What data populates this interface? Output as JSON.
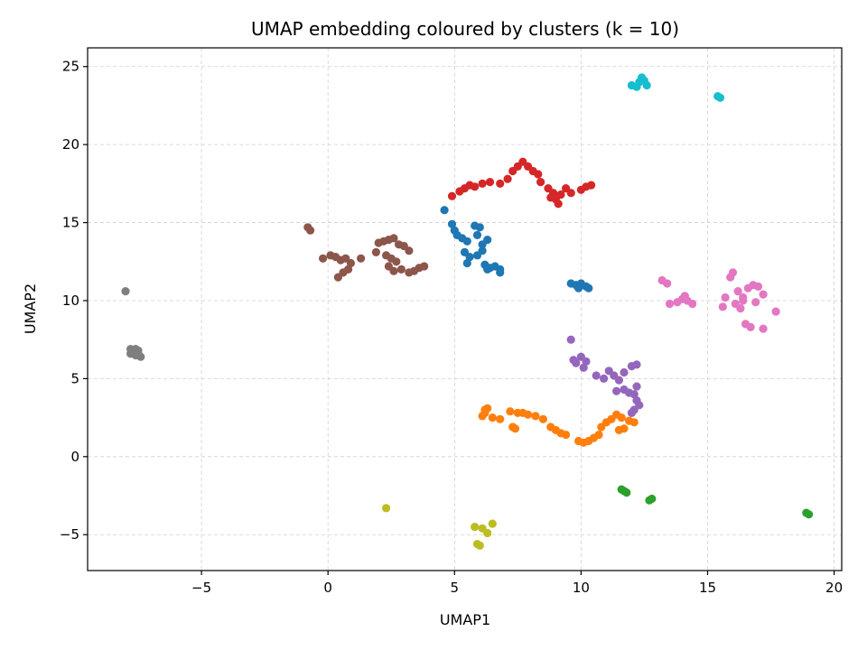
{
  "chart_data": {
    "type": "scatter",
    "title": "UMAP embedding coloured by clusters (k = 10)",
    "xlabel": "UMAP1",
    "ylabel": "UMAP2",
    "xlim": [
      -9.5,
      20.3
    ],
    "ylim": [
      -7.3,
      26.2
    ],
    "xticks": [
      -5,
      0,
      5,
      10,
      15,
      20
    ],
    "yticks": [
      -5,
      0,
      5,
      10,
      15,
      20,
      25
    ],
    "grid": true,
    "legend": "none",
    "series": [
      {
        "cluster": 0,
        "color": "#1f77b4",
        "points": [
          [
            4.6,
            15.8
          ],
          [
            4.9,
            14.9
          ],
          [
            5.0,
            14.5
          ],
          [
            5.1,
            14.2
          ],
          [
            5.3,
            14.0
          ],
          [
            5.5,
            13.8
          ],
          [
            5.8,
            14.8
          ],
          [
            6.0,
            14.7
          ],
          [
            5.9,
            14.2
          ],
          [
            6.1,
            13.6
          ],
          [
            6.3,
            13.9
          ],
          [
            6.1,
            13.2
          ],
          [
            5.4,
            13.1
          ],
          [
            5.6,
            12.8
          ],
          [
            5.5,
            12.4
          ],
          [
            5.9,
            12.9
          ],
          [
            6.2,
            12.3
          ],
          [
            6.4,
            12.1
          ],
          [
            6.6,
            12.2
          ],
          [
            6.8,
            12.0
          ],
          [
            6.8,
            11.8
          ],
          [
            6.3,
            12.0
          ],
          [
            9.6,
            11.1
          ],
          [
            9.8,
            11.0
          ],
          [
            10.0,
            11.1
          ],
          [
            10.2,
            10.9
          ],
          [
            10.3,
            10.8
          ],
          [
            9.9,
            10.8
          ]
        ]
      },
      {
        "cluster": 1,
        "color": "#ff7f0e",
        "points": [
          [
            6.1,
            2.6
          ],
          [
            6.2,
            3.0
          ],
          [
            6.3,
            3.1
          ],
          [
            6.2,
            2.8
          ],
          [
            6.5,
            2.5
          ],
          [
            6.8,
            2.4
          ],
          [
            7.2,
            2.9
          ],
          [
            7.5,
            2.8
          ],
          [
            7.7,
            2.8
          ],
          [
            7.9,
            2.7
          ],
          [
            8.2,
            2.6
          ],
          [
            8.5,
            2.4
          ],
          [
            7.3,
            1.9
          ],
          [
            7.4,
            1.8
          ],
          [
            8.8,
            1.9
          ],
          [
            9.0,
            1.7
          ],
          [
            9.2,
            1.5
          ],
          [
            9.4,
            1.4
          ],
          [
            9.9,
            1.0
          ],
          [
            10.1,
            0.9
          ],
          [
            10.3,
            1.0
          ],
          [
            10.5,
            1.2
          ],
          [
            10.7,
            1.4
          ],
          [
            10.8,
            1.9
          ],
          [
            11.0,
            2.2
          ],
          [
            11.2,
            2.4
          ],
          [
            11.4,
            2.7
          ],
          [
            11.6,
            2.5
          ],
          [
            11.9,
            2.3
          ],
          [
            12.1,
            2.2
          ],
          [
            11.5,
            1.7
          ],
          [
            11.7,
            1.8
          ]
        ]
      },
      {
        "cluster": 2,
        "color": "#2ca02c",
        "points": [
          [
            11.6,
            -2.1
          ],
          [
            11.7,
            -2.2
          ],
          [
            11.8,
            -2.3
          ],
          [
            12.8,
            -2.7
          ],
          [
            12.7,
            -2.8
          ],
          [
            18.9,
            -3.6
          ],
          [
            19.0,
            -3.7
          ]
        ]
      },
      {
        "cluster": 3,
        "color": "#d62728",
        "points": [
          [
            4.9,
            16.7
          ],
          [
            5.2,
            17.0
          ],
          [
            5.4,
            17.2
          ],
          [
            5.6,
            17.4
          ],
          [
            5.8,
            17.3
          ],
          [
            6.1,
            17.5
          ],
          [
            6.4,
            17.6
          ],
          [
            6.8,
            17.5
          ],
          [
            7.1,
            17.8
          ],
          [
            7.3,
            18.3
          ],
          [
            7.5,
            18.6
          ],
          [
            7.7,
            18.9
          ],
          [
            7.9,
            18.6
          ],
          [
            8.1,
            18.3
          ],
          [
            8.3,
            18.1
          ],
          [
            8.4,
            17.6
          ],
          [
            8.7,
            17.2
          ],
          [
            8.9,
            16.9
          ],
          [
            9.0,
            16.5
          ],
          [
            9.2,
            16.8
          ],
          [
            9.4,
            17.2
          ],
          [
            9.6,
            16.9
          ],
          [
            9.1,
            16.2
          ],
          [
            8.8,
            16.6
          ],
          [
            10.0,
            17.1
          ],
          [
            10.2,
            17.3
          ],
          [
            10.4,
            17.4
          ]
        ]
      },
      {
        "cluster": 4,
        "color": "#9467bd",
        "points": [
          [
            9.6,
            7.5
          ],
          [
            9.7,
            6.2
          ],
          [
            9.8,
            6.0
          ],
          [
            10.0,
            6.4
          ],
          [
            10.2,
            6.1
          ],
          [
            10.1,
            5.7
          ],
          [
            10.6,
            5.2
          ],
          [
            10.9,
            5.0
          ],
          [
            11.1,
            5.5
          ],
          [
            11.3,
            5.2
          ],
          [
            11.5,
            4.9
          ],
          [
            11.7,
            5.4
          ],
          [
            12.0,
            5.8
          ],
          [
            12.2,
            5.9
          ],
          [
            11.4,
            4.2
          ],
          [
            11.7,
            4.3
          ],
          [
            11.9,
            4.1
          ],
          [
            12.1,
            4.0
          ],
          [
            12.2,
            3.6
          ],
          [
            12.3,
            3.3
          ],
          [
            12.1,
            3.0
          ],
          [
            12.0,
            2.8
          ],
          [
            12.2,
            4.5
          ]
        ]
      },
      {
        "cluster": 5,
        "color": "#8c564b",
        "points": [
          [
            -0.8,
            14.7
          ],
          [
            -0.7,
            14.5
          ],
          [
            -0.2,
            12.7
          ],
          [
            0.1,
            12.9
          ],
          [
            0.3,
            12.8
          ],
          [
            0.5,
            12.6
          ],
          [
            0.7,
            12.7
          ],
          [
            0.9,
            12.4
          ],
          [
            0.8,
            12.0
          ],
          [
            0.6,
            11.8
          ],
          [
            0.4,
            11.5
          ],
          [
            1.3,
            12.7
          ],
          [
            1.9,
            13.1
          ],
          [
            2.0,
            13.7
          ],
          [
            2.2,
            13.8
          ],
          [
            2.4,
            13.9
          ],
          [
            2.6,
            14.0
          ],
          [
            2.8,
            13.6
          ],
          [
            2.3,
            12.9
          ],
          [
            2.5,
            12.7
          ],
          [
            2.7,
            12.5
          ],
          [
            3.0,
            13.5
          ],
          [
            3.2,
            13.2
          ],
          [
            2.4,
            12.2
          ],
          [
            2.6,
            11.9
          ],
          [
            2.9,
            12.0
          ],
          [
            3.2,
            11.8
          ],
          [
            3.4,
            11.9
          ],
          [
            3.6,
            12.1
          ],
          [
            3.8,
            12.2
          ]
        ]
      },
      {
        "cluster": 6,
        "color": "#e377c2",
        "points": [
          [
            13.2,
            11.3
          ],
          [
            13.4,
            11.1
          ],
          [
            13.5,
            9.8
          ],
          [
            13.8,
            9.9
          ],
          [
            14.0,
            10.1
          ],
          [
            14.2,
            10.0
          ],
          [
            14.4,
            9.8
          ],
          [
            14.1,
            10.3
          ],
          [
            15.7,
            10.2
          ],
          [
            15.6,
            9.6
          ],
          [
            15.9,
            11.5
          ],
          [
            16.0,
            11.8
          ],
          [
            16.2,
            10.6
          ],
          [
            16.4,
            10.2
          ],
          [
            16.6,
            10.8
          ],
          [
            16.8,
            11.0
          ],
          [
            17.0,
            10.9
          ],
          [
            17.2,
            10.4
          ],
          [
            16.1,
            9.8
          ],
          [
            16.3,
            9.5
          ],
          [
            16.5,
            8.5
          ],
          [
            16.7,
            8.3
          ],
          [
            17.2,
            8.2
          ],
          [
            17.7,
            9.3
          ],
          [
            16.9,
            9.9
          ],
          [
            16.4,
            10.0
          ]
        ]
      },
      {
        "cluster": 7,
        "color": "#7f7f7f",
        "points": [
          [
            -8.0,
            10.6
          ],
          [
            -7.8,
            6.9
          ],
          [
            -7.7,
            6.7
          ],
          [
            -7.6,
            6.9
          ],
          [
            -7.5,
            6.6
          ],
          [
            -7.4,
            6.4
          ],
          [
            -7.6,
            6.5
          ],
          [
            -7.8,
            6.6
          ],
          [
            -7.5,
            6.8
          ]
        ]
      },
      {
        "cluster": 8,
        "color": "#bcbd22",
        "points": [
          [
            2.3,
            -3.3
          ],
          [
            5.8,
            -4.5
          ],
          [
            6.1,
            -4.6
          ],
          [
            6.3,
            -4.9
          ],
          [
            6.5,
            -4.3
          ],
          [
            6.0,
            -5.7
          ],
          [
            5.9,
            -5.6
          ]
        ]
      },
      {
        "cluster": 9,
        "color": "#17becf",
        "points": [
          [
            12.0,
            23.8
          ],
          [
            12.2,
            23.7
          ],
          [
            12.4,
            24.3
          ],
          [
            12.6,
            23.8
          ],
          [
            12.3,
            24.0
          ],
          [
            12.5,
            24.1
          ],
          [
            15.4,
            23.1
          ],
          [
            15.5,
            23.0
          ]
        ]
      }
    ]
  }
}
